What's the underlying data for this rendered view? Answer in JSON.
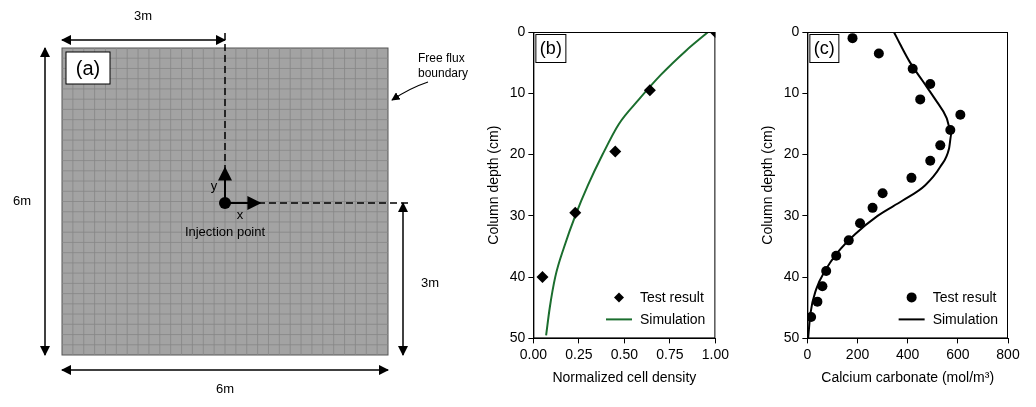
{
  "diagram": {
    "panel": "(a)",
    "dimensions": {
      "top": "3m",
      "left": "6m",
      "bottom": "6m",
      "right": "3m"
    },
    "boundary_label": "Free flux\nboundary",
    "axes": {
      "x": "x",
      "y": "y"
    },
    "point_label": "Injection point"
  },
  "chart_data": [
    {
      "type": "scatter",
      "title": "(b)",
      "x_label": "Normalized cell density",
      "y_label": "Column depth (cm)",
      "xlim": [
        0,
        1
      ],
      "xticks": [
        {
          "value": 0,
          "label": "0.00"
        },
        {
          "value": 0.25,
          "label": "0.25"
        },
        {
          "value": 0.5,
          "label": "0.50"
        },
        {
          "value": 0.75,
          "label": "0.75"
        },
        {
          "value": 1,
          "label": "1.00"
        }
      ],
      "ylim": [
        0,
        50
      ],
      "yticks": [
        0,
        10,
        20,
        30,
        40,
        50
      ],
      "grid": false,
      "legend": "lower right",
      "series": [
        {
          "name": "Test result",
          "type": "scatter",
          "marker": "diamond",
          "color": "#000000",
          "x": [
            1.0,
            0.64,
            0.45,
            0.23,
            0.05
          ],
          "values": [
            0,
            9.5,
            19.5,
            29.5,
            40
          ]
        },
        {
          "name": "Simulation",
          "type": "line",
          "line_style": "solid",
          "color": "#1b6e2e",
          "x": [
            0.96,
            0.84,
            0.7,
            0.58,
            0.47,
            0.38,
            0.3,
            0.23,
            0.17,
            0.12,
            0.09,
            0.07
          ],
          "values": [
            0,
            3,
            7,
            11,
            15,
            20,
            25,
            30,
            35,
            40,
            45,
            49.5
          ]
        }
      ]
    },
    {
      "type": "scatter",
      "title": "(c)",
      "x_label": "Calcium carbonate (mol/m³)",
      "y_label": "Column depth (cm)",
      "xlim": [
        0,
        800
      ],
      "xticks": [
        0,
        200,
        400,
        600,
        800
      ],
      "ylim": [
        0,
        50
      ],
      "yticks": [
        0,
        10,
        20,
        30,
        40,
        50
      ],
      "grid": false,
      "legend": "lower right",
      "series": [
        {
          "name": "Test result",
          "type": "scatter",
          "marker": "circle",
          "color": "#000000",
          "x": [
            180,
            285,
            420,
            490,
            450,
            610,
            570,
            530,
            490,
            415,
            300,
            260,
            210,
            165,
            115,
            75,
            60,
            40,
            15
          ],
          "values": [
            1,
            3.5,
            6,
            8.5,
            11,
            13.5,
            16,
            18.5,
            21,
            23.8,
            26.3,
            28.7,
            31.2,
            34,
            36.5,
            39,
            41.5,
            44,
            46.5
          ]
        },
        {
          "name": "Simulation",
          "type": "line",
          "line_style": "solid",
          "color": "#000000",
          "x": [
            345,
            370,
            410,
            460,
            510,
            555,
            575,
            565,
            530,
            470,
            380,
            280,
            190,
            120,
            70,
            35,
            12,
            3
          ],
          "values": [
            0,
            2,
            5,
            8,
            11,
            14,
            16.5,
            19,
            22,
            25,
            27.5,
            30,
            33,
            36,
            39,
            42,
            46,
            50
          ]
        }
      ]
    }
  ]
}
